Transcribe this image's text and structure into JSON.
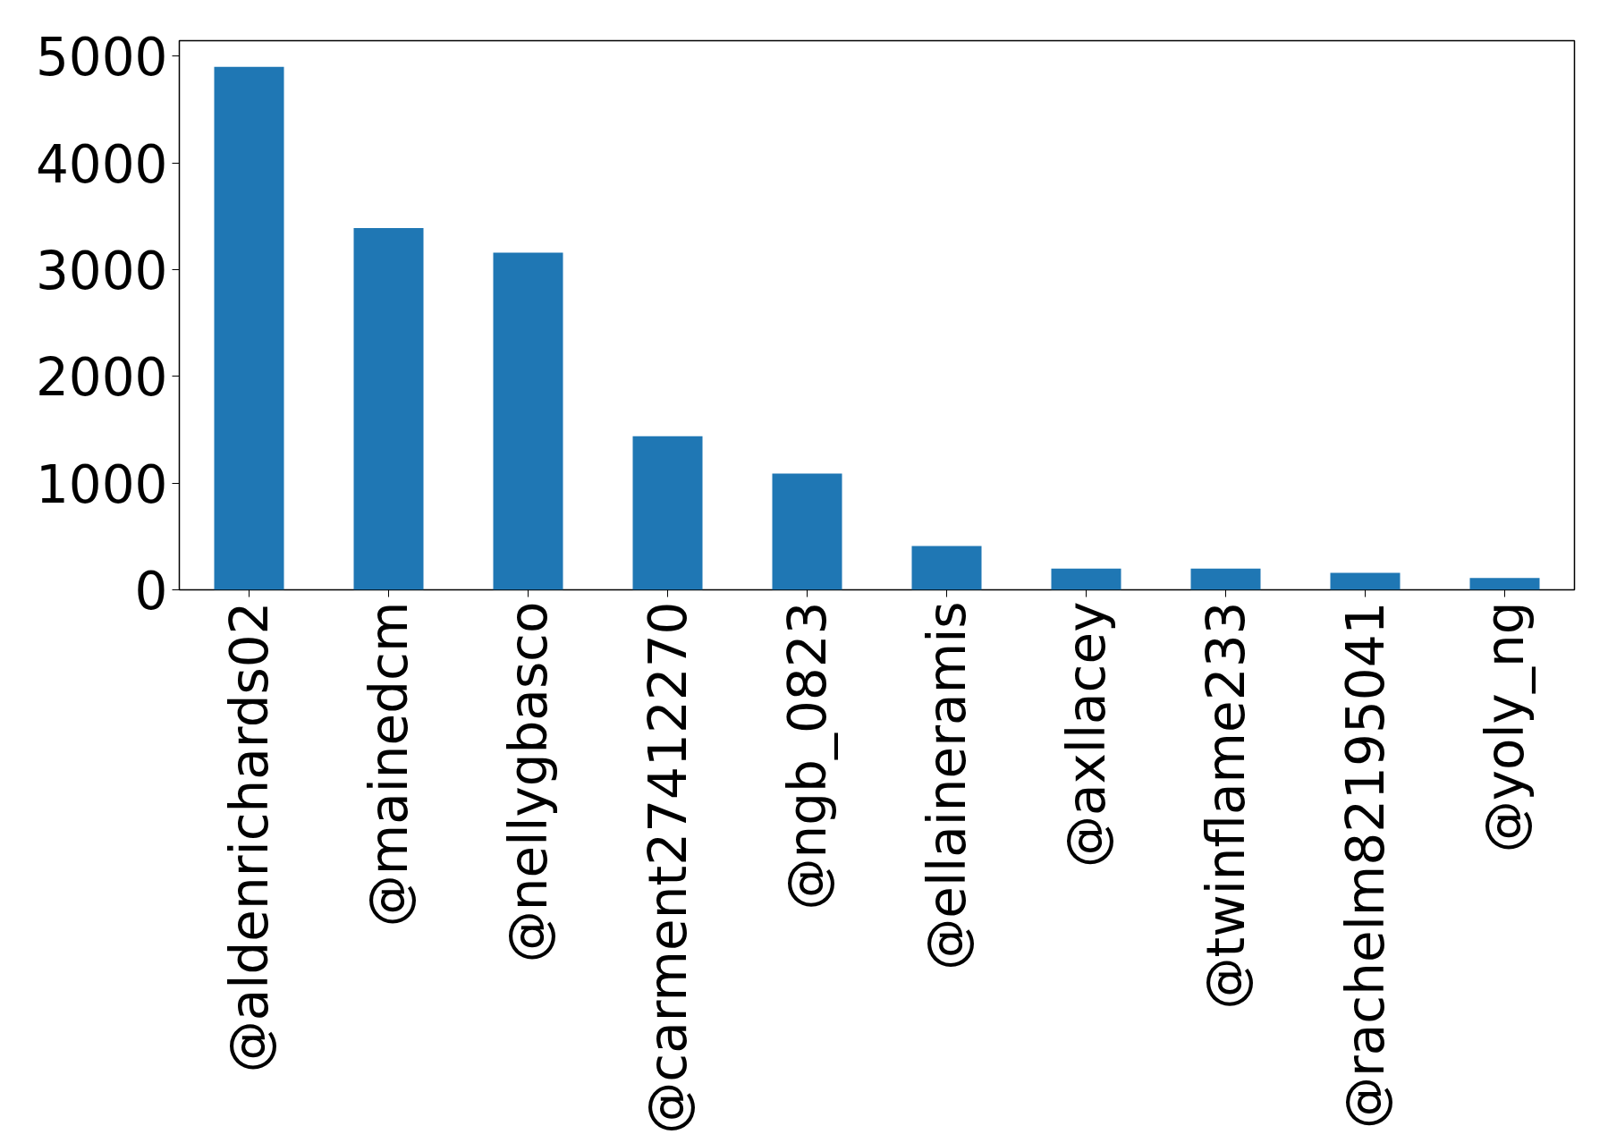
{
  "chart_data": {
    "type": "bar",
    "categories": [
      "@aldenrichards02",
      "@mainedcm",
      "@nellygbasco",
      "@carment27412270",
      "@ngb_0823",
      "@ellaineramis",
      "@axllacey",
      "@twinflame233",
      "@rachelm82195041",
      "@yoly_ng"
    ],
    "values": [
      4900,
      3390,
      3160,
      1440,
      1090,
      410,
      200,
      200,
      160,
      110
    ],
    "color": "#1f77b4",
    "ylim": [
      0,
      5145
    ],
    "yticks": [
      0,
      1000,
      2000,
      3000,
      4000,
      5000
    ],
    "grid": false
  }
}
